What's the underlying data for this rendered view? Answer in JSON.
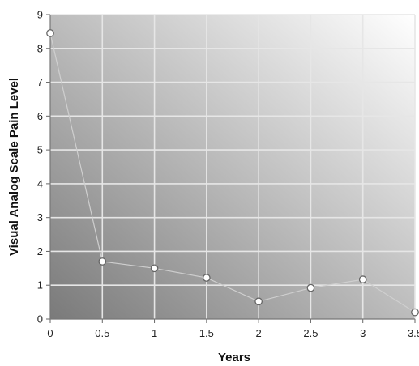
{
  "chart_data": {
    "type": "line",
    "title": "",
    "xlabel": "Years",
    "ylabel": "Visual Analog Scale Pain Level",
    "x_ticks": [
      "0",
      "0.5",
      "1",
      "1.5",
      "2",
      "2.5",
      "3",
      "3.5"
    ],
    "y_ticks": [
      "0",
      "1",
      "2",
      "3",
      "4",
      "5",
      "6",
      "7",
      "8",
      "9"
    ],
    "xlim": [
      0,
      3.5
    ],
    "ylim": [
      0,
      9
    ],
    "grid": true,
    "series": [
      {
        "x": [
          0,
          0.5,
          1,
          1.5,
          2,
          2.5,
          3,
          3.5
        ],
        "y": [
          8.45,
          1.7,
          1.5,
          1.22,
          0.52,
          0.92,
          1.17,
          0.2
        ]
      }
    ],
    "colors": {
      "plot_bg_light": "#ffffff",
      "plot_bg_dark": "#7a7a7a",
      "grid": "#e6e6e6",
      "line": "#cfcfcf",
      "marker_fill": "#ffffff",
      "marker_stroke": "#666666"
    }
  }
}
